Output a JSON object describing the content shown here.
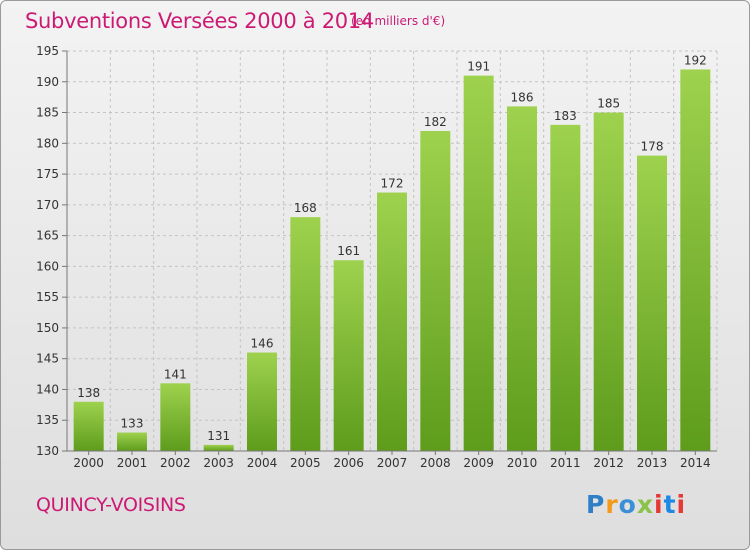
{
  "header": {
    "title": "Subventions Versées 2000 à 2014",
    "unit": "(en milliers d'€)"
  },
  "footer": {
    "commune": "QUINCY-VOISINS",
    "logo": "Proxiti"
  },
  "colors": {
    "accent": "#cc1a74",
    "bar_light": "#9ed24e",
    "bar_dark": "#5e9c1c",
    "logo_letters": [
      "#2e7fc8",
      "#f29a1a",
      "#3a8fd6",
      "#8bc34a",
      "#e53935",
      "#1e88e5",
      "#e53935"
    ]
  },
  "chart_data": {
    "type": "bar",
    "title": "Subventions Versées 2000 à 2014",
    "subtitle": "(en milliers d'€)",
    "xlabel": "",
    "ylabel": "",
    "categories": [
      "2000",
      "2001",
      "2002",
      "2003",
      "2004",
      "2005",
      "2006",
      "2007",
      "2008",
      "2009",
      "2010",
      "2011",
      "2012",
      "2013",
      "2014"
    ],
    "values": [
      138,
      133,
      141,
      131,
      146,
      168,
      161,
      172,
      182,
      191,
      186,
      183,
      185,
      178,
      192
    ],
    "ylim": [
      130,
      195
    ],
    "yticks": [
      130,
      135,
      140,
      145,
      150,
      155,
      160,
      165,
      170,
      175,
      180,
      185,
      190,
      195
    ],
    "grid": true,
    "legend": "none"
  }
}
